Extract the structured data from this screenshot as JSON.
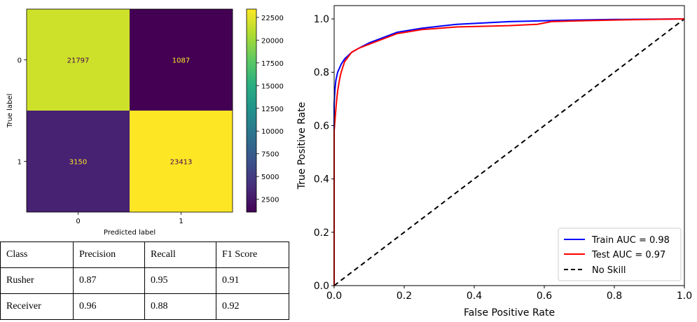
{
  "chart_data": [
    {
      "type": "heatmap",
      "title": "",
      "xlabel": "Predicted label",
      "ylabel": "True label",
      "x_categories": [
        "0",
        "1"
      ],
      "y_categories": [
        "0",
        "1"
      ],
      "matrix": [
        [
          21797,
          1087
        ],
        [
          3150,
          23413
        ]
      ],
      "matrix_labels": [
        [
          "21797",
          "1087"
        ],
        [
          "3150",
          "23413"
        ]
      ],
      "colormap": "viridis",
      "colorbar": {
        "range": [
          1087,
          23413
        ],
        "ticks": [
          2500,
          5000,
          7500,
          10000,
          12500,
          15000,
          17500,
          20000,
          22500
        ],
        "tick_labels": [
          "2500",
          "5000",
          "7500",
          "10000",
          "12500",
          "15000",
          "17500",
          "20000",
          "22500"
        ]
      }
    },
    {
      "type": "line",
      "title": "",
      "xlabel": "False Positive Rate",
      "ylabel": "True Positive Rate",
      "xlim": [
        0,
        1
      ],
      "ylim": [
        0,
        1.05
      ],
      "xticks": [
        "0.0",
        "0.2",
        "0.4",
        "0.6",
        "0.8",
        "1.0"
      ],
      "yticks": [
        "0.0",
        "0.2",
        "0.4",
        "0.6",
        "0.8",
        "1.0"
      ],
      "grid": false,
      "legend_position": "bottom-right",
      "series": [
        {
          "name": "Train AUC = 0.98",
          "color": "#0000ff",
          "style": "solid",
          "x": [
            0,
            0,
            0.002,
            0.005,
            0.01,
            0.02,
            0.03,
            0.05,
            0.07,
            0.1,
            0.13,
            0.18,
            0.25,
            0.35,
            0.5,
            0.65,
            0.8,
            1.0
          ],
          "y": [
            0,
            0.68,
            0.73,
            0.77,
            0.8,
            0.83,
            0.85,
            0.875,
            0.89,
            0.91,
            0.925,
            0.95,
            0.965,
            0.98,
            0.99,
            0.995,
            0.998,
            1.0
          ]
        },
        {
          "name": "Test AUC = 0.97",
          "color": "#ff0000",
          "style": "solid",
          "x": [
            0,
            0,
            0.003,
            0.006,
            0.01,
            0.015,
            0.02,
            0.03,
            0.05,
            0.07,
            0.1,
            0.13,
            0.18,
            0.25,
            0.35,
            0.5,
            0.58,
            0.62,
            0.7,
            0.8,
            0.9,
            1.0
          ],
          "y": [
            0,
            0.58,
            0.63,
            0.68,
            0.73,
            0.77,
            0.8,
            0.84,
            0.875,
            0.89,
            0.905,
            0.92,
            0.945,
            0.96,
            0.97,
            0.975,
            0.98,
            0.99,
            0.993,
            0.996,
            0.998,
            1.0
          ]
        },
        {
          "name": "No Skill",
          "color": "#000000",
          "style": "dashed",
          "x": [
            0,
            1
          ],
          "y": [
            0,
            1
          ]
        }
      ]
    },
    {
      "type": "table",
      "columns": [
        "Class",
        "Precision",
        "Recall",
        "F1 Score"
      ],
      "rows": [
        [
          "Rusher",
          "0.87",
          "0.95",
          "0.91"
        ],
        [
          "Receiver",
          "0.96",
          "0.88",
          "0.92"
        ]
      ]
    }
  ]
}
